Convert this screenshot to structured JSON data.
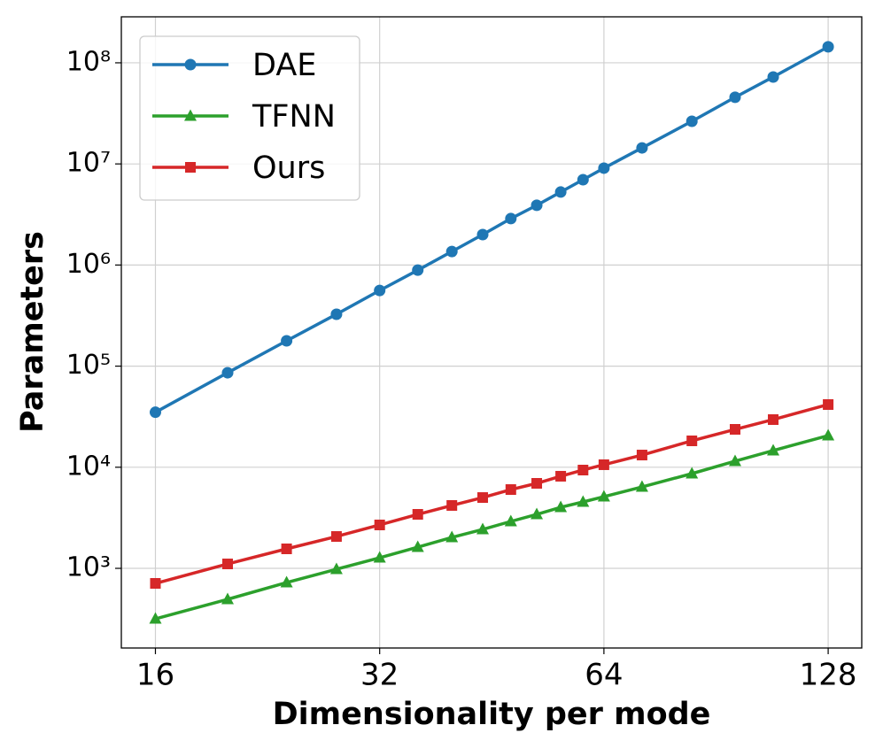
{
  "chart_data": {
    "type": "line",
    "xlabel": "Dimensionality per mode",
    "ylabel": "Parameters",
    "xscale": "log",
    "yscale": "log",
    "x": [
      16,
      20,
      24,
      28,
      32,
      36,
      40,
      44,
      48,
      52,
      56,
      60,
      64,
      72,
      84,
      96,
      108,
      128
    ],
    "series": [
      {
        "name": "DAE",
        "color": "#1f77b4",
        "marker": "circle",
        "values": [
          35000,
          86000,
          178000,
          326000,
          560000,
          890000,
          1360000,
          2000000,
          2880000,
          3900000,
          5270000,
          6980000,
          9080000,
          14400000,
          26400000,
          45600000,
          72400000,
          144000000
        ]
      },
      {
        "name": "TFNN",
        "color": "#2ca02c",
        "marker": "triangle",
        "values": [
          317,
          494,
          724,
          980,
          1273,
          1622,
          2024,
          2428,
          2912,
          3421,
          4020,
          4538,
          5120,
          6390,
          8650,
          11480,
          14620,
          20570
        ]
      },
      {
        "name": "Ours",
        "color": "#d62728",
        "marker": "square",
        "values": [
          710,
          1106,
          1559,
          2066,
          2687,
          3421,
          4188,
          5015,
          6015,
          6930,
          8146,
          9377,
          10590,
          13200,
          18240,
          23700,
          29600,
          41700
        ]
      }
    ],
    "xlim": [
      14.4,
      142
    ],
    "ylim": [
      163,
      285000000
    ],
    "xticks": [
      16,
      32,
      64,
      128
    ],
    "yticks": [
      {
        "value": 1000,
        "label": "10³"
      },
      {
        "value": 10000,
        "label": "10⁴"
      },
      {
        "value": 100000,
        "label": "10⁵"
      },
      {
        "value": 1000000,
        "label": "10⁶"
      },
      {
        "value": 10000000,
        "label": "10⁷"
      },
      {
        "value": 100000000,
        "label": "10⁸"
      }
    ],
    "grid": true,
    "legend": "upper left"
  }
}
